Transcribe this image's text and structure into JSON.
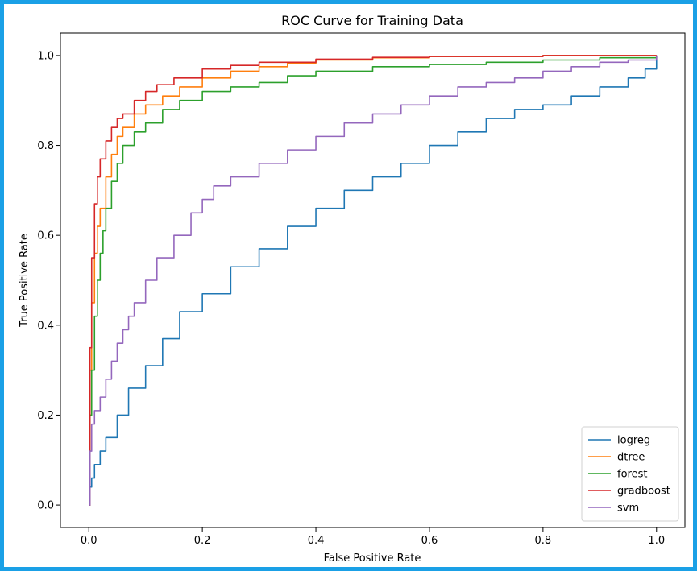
{
  "chart_data": {
    "type": "line",
    "title": "ROC Curve for Training Data",
    "xlabel": "False Positive Rate",
    "ylabel": "True Positive Rate",
    "xlim": [
      -0.05,
      1.05
    ],
    "ylim": [
      -0.05,
      1.05
    ],
    "xticks": [
      "0.0",
      "0.2",
      "0.4",
      "0.6",
      "0.8",
      "1.0"
    ],
    "yticks": [
      "0.0",
      "0.2",
      "0.4",
      "0.6",
      "0.8",
      "1.0"
    ],
    "grid": false,
    "legend_position": "lower-right",
    "series": [
      {
        "name": "logreg",
        "color": "#1f77b4",
        "x": [
          0,
          0.002,
          0.005,
          0.01,
          0.02,
          0.03,
          0.05,
          0.07,
          0.1,
          0.13,
          0.16,
          0.2,
          0.25,
          0.3,
          0.35,
          0.4,
          0.45,
          0.5,
          0.55,
          0.6,
          0.65,
          0.7,
          0.75,
          0.8,
          0.85,
          0.9,
          0.95,
          0.98,
          1.0
        ],
        "y": [
          0,
          0.04,
          0.06,
          0.09,
          0.12,
          0.15,
          0.2,
          0.26,
          0.31,
          0.37,
          0.43,
          0.47,
          0.53,
          0.57,
          0.62,
          0.66,
          0.7,
          0.73,
          0.76,
          0.8,
          0.83,
          0.86,
          0.88,
          0.89,
          0.91,
          0.93,
          0.95,
          0.97,
          1.0
        ]
      },
      {
        "name": "dtree",
        "color": "#ff7f0e",
        "x": [
          0,
          0.002,
          0.005,
          0.01,
          0.015,
          0.02,
          0.03,
          0.04,
          0.05,
          0.06,
          0.08,
          0.1,
          0.13,
          0.16,
          0.2,
          0.25,
          0.3,
          0.35,
          0.4,
          0.5,
          0.6,
          0.8,
          1.0
        ],
        "y": [
          0,
          0.3,
          0.45,
          0.56,
          0.62,
          0.66,
          0.73,
          0.78,
          0.82,
          0.84,
          0.87,
          0.89,
          0.91,
          0.93,
          0.95,
          0.965,
          0.975,
          0.983,
          0.99,
          0.995,
          0.998,
          1.0,
          1.0
        ]
      },
      {
        "name": "forest",
        "color": "#2ca02c",
        "x": [
          0,
          0.002,
          0.005,
          0.01,
          0.015,
          0.02,
          0.025,
          0.03,
          0.04,
          0.05,
          0.06,
          0.08,
          0.1,
          0.13,
          0.16,
          0.2,
          0.25,
          0.3,
          0.35,
          0.4,
          0.5,
          0.6,
          0.7,
          0.8,
          0.9,
          1.0
        ],
        "y": [
          0,
          0.2,
          0.3,
          0.42,
          0.5,
          0.56,
          0.61,
          0.66,
          0.72,
          0.76,
          0.8,
          0.83,
          0.85,
          0.88,
          0.9,
          0.92,
          0.93,
          0.94,
          0.955,
          0.965,
          0.975,
          0.98,
          0.985,
          0.99,
          0.995,
          1.0
        ]
      },
      {
        "name": "gradboost",
        "color": "#d62728",
        "x": [
          0,
          0.002,
          0.005,
          0.01,
          0.015,
          0.02,
          0.03,
          0.04,
          0.05,
          0.06,
          0.08,
          0.1,
          0.12,
          0.15,
          0.2,
          0.25,
          0.3,
          0.4,
          0.5,
          0.6,
          0.8,
          1.0
        ],
        "y": [
          0,
          0.35,
          0.55,
          0.67,
          0.73,
          0.77,
          0.81,
          0.84,
          0.86,
          0.87,
          0.9,
          0.92,
          0.935,
          0.95,
          0.97,
          0.978,
          0.985,
          0.992,
          0.996,
          0.998,
          1.0,
          1.0
        ]
      },
      {
        "name": "svm",
        "color": "#9467bd",
        "x": [
          0,
          0.002,
          0.005,
          0.01,
          0.02,
          0.03,
          0.04,
          0.05,
          0.06,
          0.07,
          0.08,
          0.1,
          0.12,
          0.15,
          0.18,
          0.2,
          0.22,
          0.25,
          0.3,
          0.35,
          0.4,
          0.45,
          0.5,
          0.55,
          0.6,
          0.65,
          0.7,
          0.75,
          0.8,
          0.85,
          0.9,
          0.95,
          1.0
        ],
        "y": [
          0,
          0.12,
          0.18,
          0.21,
          0.24,
          0.28,
          0.32,
          0.36,
          0.39,
          0.42,
          0.45,
          0.5,
          0.55,
          0.6,
          0.65,
          0.68,
          0.71,
          0.73,
          0.76,
          0.79,
          0.82,
          0.85,
          0.87,
          0.89,
          0.91,
          0.93,
          0.94,
          0.95,
          0.965,
          0.975,
          0.985,
          0.99,
          1.0
        ]
      }
    ]
  }
}
